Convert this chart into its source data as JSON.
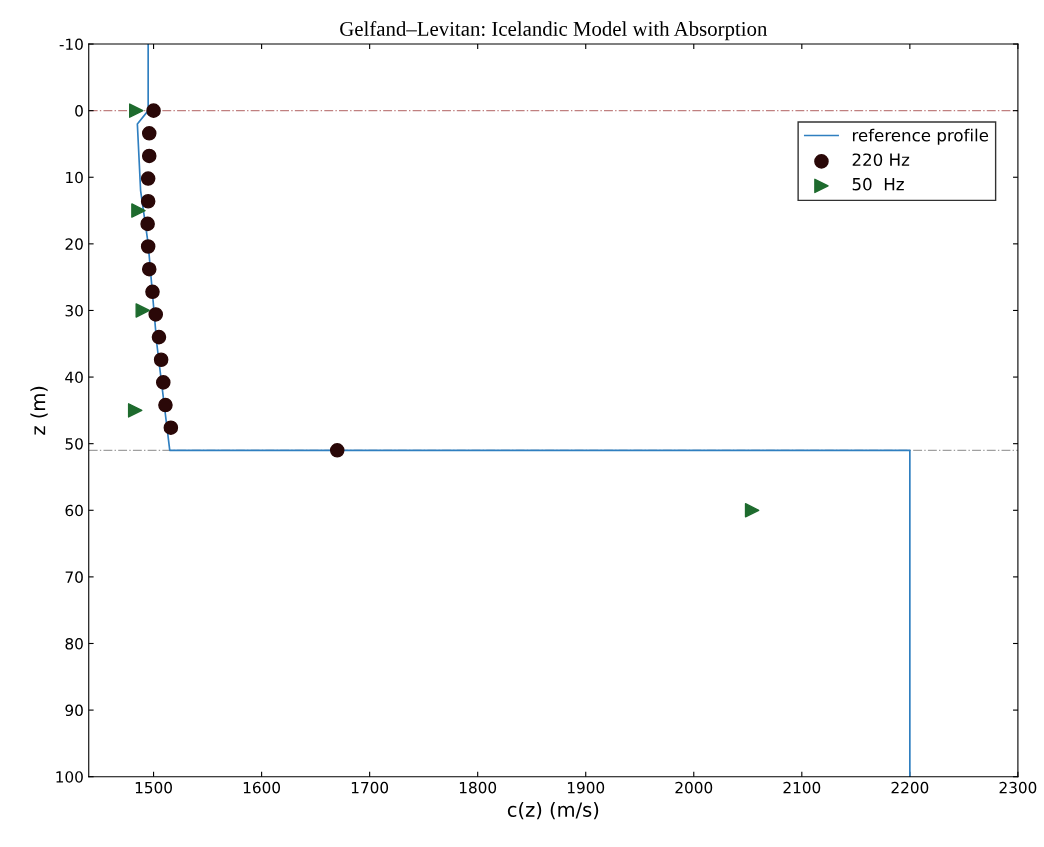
{
  "chart_data": {
    "type": "line",
    "title": "Gelfand–Levitan: Icelandic Model with Absorption",
    "xlabel": "c(z) (m/s)",
    "ylabel": "z (m)",
    "xlim": [
      1440,
      2300
    ],
    "xticks": [
      1500,
      1600,
      1700,
      1800,
      1900,
      2000,
      2100,
      2200,
      2300
    ],
    "ylim": [
      100,
      -10
    ],
    "yticks": [
      -10,
      0,
      10,
      20,
      30,
      40,
      50,
      60,
      70,
      80,
      90,
      100
    ],
    "grid": false,
    "legend": "top right",
    "series": [
      {
        "name": "reference profile",
        "color": "#2f7fc0",
        "marker": "none",
        "line_style": "solid",
        "x": [
          1495,
          1495,
          1485,
          1488,
          1495,
          1503,
          1515,
          2200,
          2200
        ],
        "values": [
          -10,
          0,
          2,
          12,
          20,
          35,
          51,
          51,
          100
        ]
      },
      {
        "name": "220 Hz",
        "type": "scatter",
        "color": "#2a0808",
        "marker": "circle",
        "x": [
          1500,
          1496,
          1496,
          1495,
          1495,
          1494.5,
          1495,
          1496,
          1499,
          1502,
          1505,
          1507,
          1509,
          1511,
          1516,
          1670
        ],
        "values": [
          0,
          3.4,
          6.8,
          10.2,
          13.6,
          17,
          20.4,
          23.8,
          27.2,
          30.6,
          34,
          37.4,
          40.8,
          44.2,
          47.6,
          51
        ]
      },
      {
        "name": "50  Hz",
        "type": "scatter",
        "color": "#1e6b2e",
        "marker": "triangle",
        "x": [
          1484,
          1486,
          1490,
          1483,
          2054
        ],
        "values": [
          0,
          15,
          30,
          45,
          60
        ]
      }
    ],
    "ref_lines": [
      {
        "axis": "y",
        "value": 0,
        "color": "#c08080",
        "line_style": "dashdot"
      },
      {
        "axis": "y",
        "value": 51,
        "color": "#a0a0a0",
        "line_style": "dashdot"
      }
    ]
  }
}
